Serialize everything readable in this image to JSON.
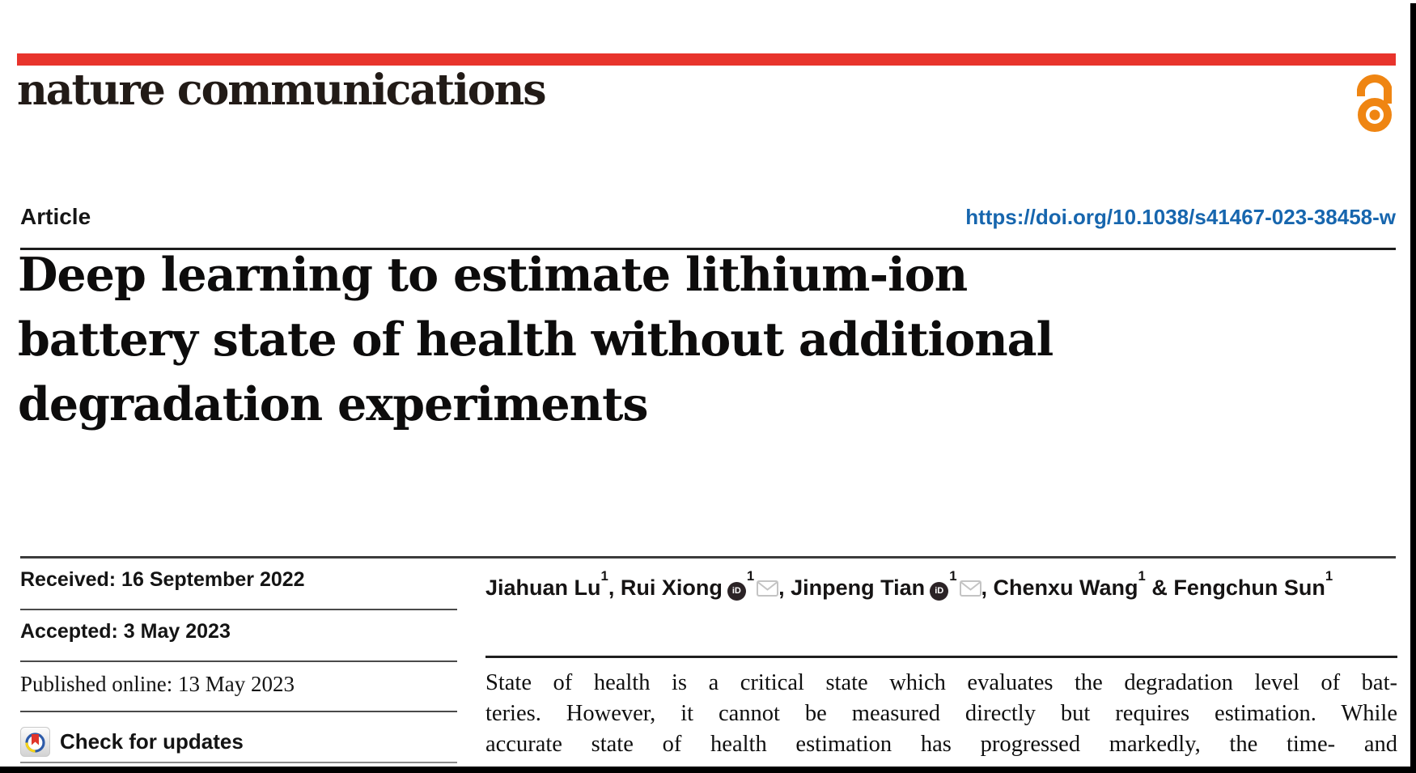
{
  "colors": {
    "accent_red": "#e8342c",
    "doi_blue": "#1766ae",
    "open_access_orange": "#ef8512",
    "crossmark_red": "#e0352b",
    "crossmark_blue": "#2d5ba9",
    "crossmark_yellow": "#f7d417"
  },
  "masthead": {
    "journal": "nature communications"
  },
  "article_header": {
    "kicker": "Article",
    "doi_link": "https://doi.org/10.1038/s41467-023-38458-w"
  },
  "title": {
    "lines": [
      "Deep learning to estimate lithium-ion",
      "battery state of health without additional",
      "degradation experiments"
    ]
  },
  "dates": [
    {
      "label": "Received",
      "value": "16 September 2022",
      "style": "sans"
    },
    {
      "label": "Accepted",
      "value": "3 May 2023",
      "style": "sans"
    },
    {
      "label": "Published online",
      "value": "13 May 2023",
      "style": "serif"
    }
  ],
  "check_for_updates": {
    "label": "Check for updates"
  },
  "authors": {
    "separator": ", ",
    "last_separator": " & ",
    "orcid_icon_text": "iD",
    "list": [
      {
        "name": "Jiahuan Lu",
        "sup": "1",
        "orcid": false,
        "email": false
      },
      {
        "name": "Rui Xiong",
        "sup": "1",
        "orcid": true,
        "email": true
      },
      {
        "name": "Jinpeng Tian",
        "sup": "1",
        "orcid": true,
        "email": true
      },
      {
        "name": "Chenxu Wang",
        "sup": "1",
        "orcid": false,
        "email": false
      },
      {
        "name": "Fengchun Sun",
        "sup": "1",
        "orcid": false,
        "email": false
      }
    ]
  },
  "abstract": {
    "lines": [
      "State of health is a critical state which evaluates the degradation level of bat-",
      "teries. However, it cannot be measured directly but requires estimation. While",
      "accurate state of health estimation has progressed markedly, the time- and"
    ]
  }
}
